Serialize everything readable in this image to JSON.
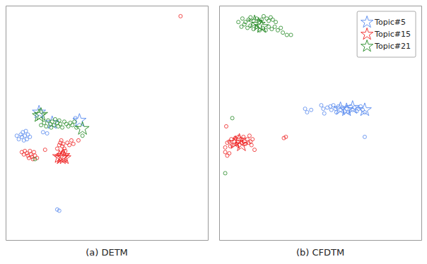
{
  "chart_data": [
    {
      "type": "scatter",
      "x_label": "(a) DETM",
      "xlim": [
        0,
        1
      ],
      "ylim": [
        0,
        1
      ],
      "tick_labels": false,
      "series": [
        {
          "color": "#5588EE",
          "marker": "circle",
          "x": [
            0.055,
            0.065,
            0.075,
            0.08,
            0.085,
            0.09,
            0.095,
            0.1,
            0.105,
            0.11,
            0.12,
            0.185,
            0.205,
            0.345,
            0.255,
            0.265
          ],
          "values": [
            0.445,
            0.43,
            0.45,
            0.44,
            0.46,
            0.425,
            0.445,
            0.465,
            0.43,
            0.45,
            0.44,
            0.46,
            0.455,
            0.52,
            0.13,
            0.125
          ]
        },
        {
          "color": "#5588EE",
          "marker": "star",
          "x": [
            0.165,
            0.365,
            0.23
          ],
          "values": [
            0.545,
            0.51,
            0.5
          ]
        },
        {
          "color": "#EE2222",
          "marker": "circle",
          "x": [
            0.08,
            0.09,
            0.095,
            0.105,
            0.11,
            0.115,
            0.12,
            0.125,
            0.13,
            0.135,
            0.14,
            0.145,
            0.155,
            0.195,
            0.255,
            0.265,
            0.27,
            0.275,
            0.28,
            0.285,
            0.29,
            0.295,
            0.305,
            0.315,
            0.325,
            0.335,
            0.36,
            0.865
          ],
          "values": [
            0.375,
            0.365,
            0.38,
            0.37,
            0.36,
            0.35,
            0.38,
            0.365,
            0.355,
            0.345,
            0.375,
            0.36,
            0.35,
            0.385,
            0.39,
            0.405,
            0.415,
            0.425,
            0.4,
            0.41,
            0.39,
            0.38,
            0.415,
            0.405,
            0.425,
            0.41,
            0.425,
            0.955
          ]
        },
        {
          "color": "#EE2222",
          "marker": "star",
          "x": [
            0.265,
            0.275,
            0.28,
            0.285,
            0.29
          ],
          "values": [
            0.355,
            0.35,
            0.355,
            0.36,
            0.35
          ]
        },
        {
          "color": "#228822",
          "marker": "circle",
          "x": [
            0.175,
            0.19,
            0.2,
            0.21,
            0.22,
            0.225,
            0.23,
            0.24,
            0.245,
            0.255,
            0.26,
            0.265,
            0.27,
            0.28,
            0.29,
            0.3,
            0.31,
            0.32,
            0.33,
            0.34,
            0.35,
            0.38,
            0.145
          ],
          "values": [
            0.49,
            0.5,
            0.485,
            0.51,
            0.495,
            0.48,
            0.505,
            0.49,
            0.515,
            0.5,
            0.485,
            0.51,
            0.495,
            0.48,
            0.505,
            0.495,
            0.485,
            0.5,
            0.49,
            0.505,
            0.48,
            0.445,
            0.345
          ]
        },
        {
          "color": "#228822",
          "marker": "star",
          "x": [
            0.165,
            0.175,
            0.38
          ],
          "values": [
            0.53,
            0.535,
            0.475
          ]
        }
      ]
    },
    {
      "type": "scatter",
      "x_label": "(b) CFDTM",
      "xlim": [
        0,
        1
      ],
      "ylim": [
        0,
        1
      ],
      "tick_labels": false,
      "legend": "upper right",
      "series": [
        {
          "color": "#5588EE",
          "marker": "circle",
          "x": [
            0.425,
            0.435,
            0.455,
            0.505,
            0.515,
            0.52,
            0.535,
            0.55,
            0.555,
            0.565,
            0.575,
            0.58,
            0.59,
            0.6,
            0.61,
            0.62,
            0.63,
            0.64,
            0.65,
            0.66,
            0.67,
            0.68,
            0.69,
            0.7,
            0.71,
            0.72,
            0.72
          ],
          "values": [
            0.56,
            0.545,
            0.555,
            0.575,
            0.56,
            0.54,
            0.565,
            0.57,
            0.555,
            0.575,
            0.56,
            0.545,
            0.57,
            0.555,
            0.565,
            0.55,
            0.56,
            0.545,
            0.57,
            0.555,
            0.565,
            0.55,
            0.56,
            0.57,
            0.555,
            0.545,
            0.44
          ]
        },
        {
          "name": "Topic#5",
          "color": "#5588EE",
          "marker": "star",
          "x": [
            0.6,
            0.63,
            0.66,
            0.72
          ],
          "values": [
            0.56,
            0.555,
            0.565,
            0.555
          ]
        },
        {
          "color": "#EE2222",
          "marker": "circle",
          "x": [
            0.03,
            0.04,
            0.05,
            0.055,
            0.06,
            0.065,
            0.075,
            0.08,
            0.085,
            0.09,
            0.095,
            0.1,
            0.11,
            0.115,
            0.12,
            0.125,
            0.13,
            0.14,
            0.145,
            0.15,
            0.155,
            0.16,
            0.165,
            0.175,
            0.03,
            0.04,
            0.05,
            0.32,
            0.33,
            0.035
          ],
          "values": [
            0.395,
            0.415,
            0.42,
            0.4,
            0.43,
            0.405,
            0.42,
            0.435,
            0.41,
            0.42,
            0.44,
            0.405,
            0.43,
            0.415,
            0.44,
            0.42,
            0.41,
            0.43,
            0.415,
            0.445,
            0.42,
            0.405,
            0.43,
            0.385,
            0.375,
            0.36,
            0.37,
            0.435,
            0.44,
            0.485
          ]
        },
        {
          "name": "Topic#15",
          "color": "#EE2222",
          "marker": "star",
          "x": [
            0.08,
            0.1,
            0.11
          ],
          "values": [
            0.415,
            0.425,
            0.405
          ]
        },
        {
          "color": "#228822",
          "marker": "circle",
          "x": [
            0.095,
            0.115,
            0.13,
            0.145,
            0.155,
            0.17,
            0.185,
            0.2,
            0.21,
            0.22,
            0.235,
            0.245,
            0.255,
            0.265,
            0.28,
            0.11,
            0.125,
            0.14,
            0.155,
            0.17,
            0.185,
            0.2,
            0.215,
            0.23,
            0.245,
            0.26,
            0.275,
            0.29,
            0.305,
            0.315,
            0.335,
            0.355,
            0.03,
            0.065
          ],
          "values": [
            0.93,
            0.945,
            0.93,
            0.94,
            0.95,
            0.935,
            0.945,
            0.93,
            0.94,
            0.955,
            0.945,
            0.935,
            0.95,
            0.94,
            0.93,
            0.91,
            0.92,
            0.905,
            0.915,
            0.9,
            0.91,
            0.895,
            0.905,
            0.895,
            0.91,
            0.9,
            0.91,
            0.895,
            0.905,
            0.885,
            0.875,
            0.875,
            0.285,
            0.52
          ]
        },
        {
          "name": "Topic#21",
          "color": "#228822",
          "marker": "star",
          "x": [
            0.175,
            0.195,
            0.21
          ],
          "values": [
            0.93,
            0.92,
            0.91
          ]
        }
      ]
    }
  ]
}
